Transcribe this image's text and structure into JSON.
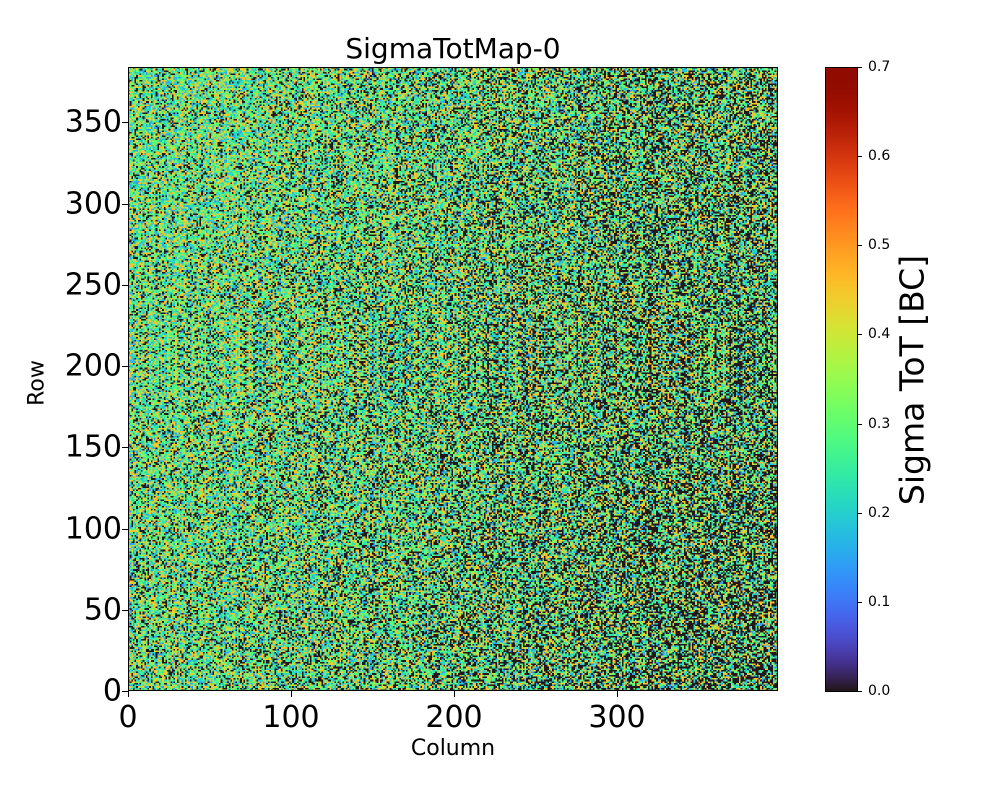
{
  "chart_data": {
    "type": "heatmap",
    "title": "SigmaTotMap-0",
    "xlabel": "Column",
    "ylabel": "Row",
    "xlim": [
      0,
      400
    ],
    "ylim": [
      0,
      384
    ],
    "xticks": [
      "0",
      "100",
      "200",
      "300"
    ],
    "yticks": [
      "0",
      "50",
      "100",
      "150",
      "200",
      "250",
      "300",
      "350"
    ],
    "colorbar": {
      "label": "Sigma ToT [BC]",
      "colormap": "turbo",
      "range": [
        0.0,
        0.7
      ],
      "ticks": [
        "0.0",
        "0.1",
        "0.2",
        "0.3",
        "0.4",
        "0.5",
        "0.6",
        "0.7"
      ]
    },
    "value_levels": [
      0.0,
      0.15,
      0.22,
      0.3,
      0.45
    ]
  }
}
